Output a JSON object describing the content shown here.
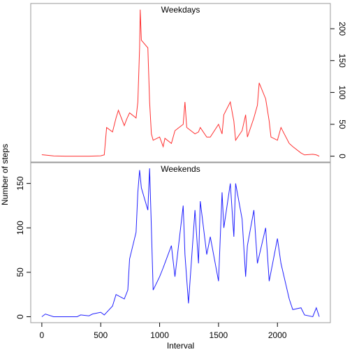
{
  "chart_data": [
    {
      "type": "line",
      "title": "Weekdays",
      "y_label": "Number of steps",
      "x": [
        0,
        100,
        200,
        300,
        400,
        500,
        530,
        550,
        600,
        630,
        650,
        700,
        720,
        745,
        800,
        815,
        830,
        835,
        845,
        900,
        915,
        930,
        945,
        1000,
        1030,
        1045,
        1100,
        1130,
        1200,
        1215,
        1230,
        1300,
        1330,
        1345,
        1400,
        1430,
        1500,
        1530,
        1545,
        1600,
        1630,
        1645,
        1700,
        1730,
        1745,
        1800,
        1830,
        1845,
        1900,
        1930,
        1945,
        2000,
        2030,
        2100,
        2130,
        2200,
        2230,
        2300,
        2330,
        2355
      ],
      "series": [
        {
          "name": "Weekdays",
          "color": "#ff3030",
          "values": [
            2.3,
            0.4,
            0,
            0,
            0,
            0.5,
            2,
            45,
            38,
            60,
            72,
            48,
            58,
            68,
            60,
            85,
            170,
            230,
            182,
            170,
            85,
            35,
            25,
            30,
            15,
            28,
            20,
            40,
            50,
            85,
            45,
            35,
            38,
            45,
            30,
            30,
            50,
            35,
            65,
            85,
            55,
            25,
            40,
            65,
            30,
            60,
            80,
            115,
            90,
            55,
            30,
            25,
            45,
            20,
            15,
            5,
            2,
            3,
            2,
            0
          ]
        }
      ],
      "xlim": [
        -94.2,
        2449.2
      ],
      "ylim": [
        -9.2,
        239.6
      ],
      "yticks": [
        0,
        50,
        100,
        150,
        200
      ],
      "y_axis_side": "right"
    },
    {
      "type": "line",
      "title": "Weekends",
      "x_label": "Interval",
      "x": [
        0,
        30,
        100,
        200,
        300,
        330,
        400,
        430,
        500,
        530,
        600,
        630,
        700,
        730,
        745,
        800,
        815,
        830,
        845,
        900,
        915,
        930,
        945,
        1000,
        1030,
        1100,
        1130,
        1200,
        1215,
        1245,
        1300,
        1330,
        1345,
        1400,
        1430,
        1500,
        1530,
        1545,
        1600,
        1630,
        1645,
        1700,
        1730,
        1745,
        1800,
        1830,
        1900,
        1930,
        2000,
        2030,
        2100,
        2130,
        2200,
        2230,
        2300,
        2330,
        2355
      ],
      "series": [
        {
          "name": "Weekends",
          "color": "#2020ff",
          "values": [
            0,
            3,
            0,
            0,
            0,
            2,
            1,
            3,
            5,
            2,
            12,
            25,
            20,
            30,
            65,
            95,
            140,
            165,
            145,
            120,
            167,
            100,
            30,
            45,
            55,
            80,
            45,
            125,
            70,
            15,
            120,
            60,
            130,
            70,
            90,
            40,
            140,
            100,
            150,
            90,
            150,
            110,
            45,
            80,
            120,
            60,
            100,
            40,
            88,
            60,
            20,
            8,
            10,
            2,
            0,
            10,
            0
          ]
        }
      ],
      "xlim": [
        -94.2,
        2449.2
      ],
      "ylim": [
        -6.7,
        173.3
      ],
      "xticks": [
        0,
        500,
        1000,
        1500,
        2000
      ],
      "yticks": [
        0,
        50,
        100,
        150
      ],
      "y_axis_side": "left"
    }
  ]
}
